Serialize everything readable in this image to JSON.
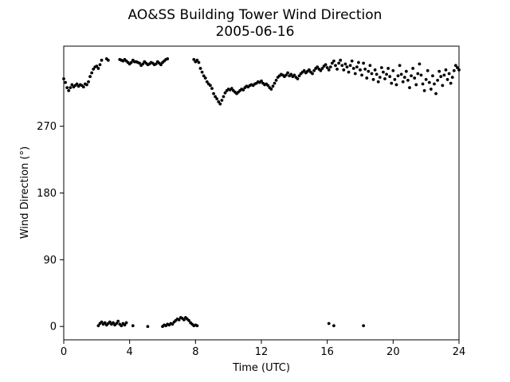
{
  "chart_data": {
    "type": "scatter",
    "title": "AO&SS Building Tower Wind Direction",
    "subtitle": "2005-06-16",
    "xlabel": "Time (UTC)",
    "ylabel": "Wind Direction (°)",
    "xlim": [
      0,
      24
    ],
    "ylim": [
      -18,
      378
    ],
    "xticks": [
      0,
      4,
      8,
      12,
      16,
      20,
      24
    ],
    "yticks": [
      0,
      90,
      180,
      270
    ],
    "grid": false,
    "legend": "none",
    "marker_color": "#000000",
    "series": [
      {
        "values": [
          [
            0.0,
            334
          ],
          [
            0.1,
            329
          ],
          [
            0.2,
            322
          ],
          [
            0.3,
            318
          ],
          [
            0.4,
            322
          ],
          [
            0.5,
            326
          ],
          [
            0.6,
            323
          ],
          [
            0.7,
            325
          ],
          [
            0.8,
            327
          ],
          [
            0.9,
            324
          ],
          [
            1.0,
            326
          ],
          [
            1.1,
            325
          ],
          [
            1.2,
            323
          ],
          [
            1.3,
            327
          ],
          [
            1.4,
            326
          ],
          [
            1.5,
            330
          ],
          [
            1.6,
            337
          ],
          [
            1.7,
            342
          ],
          [
            1.8,
            347
          ],
          [
            1.9,
            350
          ],
          [
            2.0,
            351
          ],
          [
            2.1,
            348
          ],
          [
            2.2,
            353
          ],
          [
            2.3,
            359
          ],
          [
            2.6,
            361
          ],
          [
            2.7,
            359
          ],
          [
            3.4,
            360
          ],
          [
            3.5,
            359
          ],
          [
            3.6,
            358
          ],
          [
            3.7,
            360
          ],
          [
            3.8,
            358
          ],
          [
            3.9,
            356
          ],
          [
            4.0,
            354
          ],
          [
            4.1,
            356
          ],
          [
            4.2,
            359
          ],
          [
            4.3,
            357
          ],
          [
            4.4,
            357
          ],
          [
            4.5,
            356
          ],
          [
            4.6,
            355
          ],
          [
            4.7,
            352
          ],
          [
            4.8,
            354
          ],
          [
            4.9,
            357
          ],
          [
            5.0,
            355
          ],
          [
            5.1,
            353
          ],
          [
            5.2,
            354
          ],
          [
            5.3,
            356
          ],
          [
            5.4,
            355
          ],
          [
            5.5,
            353
          ],
          [
            5.6,
            354
          ],
          [
            5.7,
            357
          ],
          [
            5.8,
            355
          ],
          [
            5.9,
            353
          ],
          [
            6.0,
            356
          ],
          [
            6.1,
            358
          ],
          [
            6.2,
            360
          ],
          [
            6.3,
            361
          ],
          [
            7.9,
            360
          ],
          [
            8.0,
            357
          ],
          [
            8.1,
            359
          ],
          [
            8.2,
            356
          ],
          [
            8.3,
            348
          ],
          [
            8.4,
            343
          ],
          [
            8.5,
            338
          ],
          [
            8.6,
            335
          ],
          [
            8.7,
            330
          ],
          [
            8.8,
            327
          ],
          [
            8.9,
            325
          ],
          [
            9.0,
            321
          ],
          [
            9.1,
            314
          ],
          [
            9.2,
            310
          ],
          [
            9.3,
            307
          ],
          [
            9.4,
            303
          ],
          [
            9.5,
            300
          ],
          [
            9.6,
            305
          ],
          [
            9.7,
            310
          ],
          [
            9.8,
            315
          ],
          [
            9.9,
            318
          ],
          [
            10.0,
            320
          ],
          [
            10.1,
            319
          ],
          [
            10.2,
            321
          ],
          [
            10.3,
            318
          ],
          [
            10.4,
            316
          ],
          [
            10.5,
            314
          ],
          [
            10.6,
            316
          ],
          [
            10.7,
            318
          ],
          [
            10.8,
            320
          ],
          [
            10.9,
            319
          ],
          [
            11.0,
            322
          ],
          [
            11.1,
            324
          ],
          [
            11.2,
            323
          ],
          [
            11.3,
            325
          ],
          [
            11.4,
            326
          ],
          [
            11.5,
            325
          ],
          [
            11.6,
            327
          ],
          [
            11.7,
            328
          ],
          [
            11.8,
            330
          ],
          [
            11.9,
            329
          ],
          [
            12.0,
            331
          ],
          [
            12.1,
            328
          ],
          [
            12.2,
            326
          ],
          [
            12.3,
            327
          ],
          [
            12.4,
            325
          ],
          [
            12.5,
            322
          ],
          [
            12.6,
            320
          ],
          [
            12.7,
            324
          ],
          [
            12.8,
            328
          ],
          [
            12.9,
            332
          ],
          [
            13.0,
            336
          ],
          [
            13.1,
            338
          ],
          [
            13.2,
            340
          ],
          [
            13.3,
            339
          ],
          [
            13.4,
            337
          ],
          [
            13.5,
            339
          ],
          [
            13.6,
            342
          ],
          [
            13.7,
            338
          ],
          [
            13.8,
            340
          ],
          [
            13.9,
            337
          ],
          [
            14.0,
            339
          ],
          [
            14.1,
            336
          ],
          [
            14.2,
            334
          ],
          [
            14.3,
            338
          ],
          [
            14.4,
            341
          ],
          [
            14.5,
            343
          ],
          [
            14.6,
            345
          ],
          [
            14.7,
            342
          ],
          [
            14.8,
            344
          ],
          [
            14.9,
            346
          ],
          [
            15.0,
            343
          ],
          [
            15.1,
            341
          ],
          [
            15.2,
            345
          ],
          [
            15.3,
            348
          ],
          [
            15.4,
            350
          ],
          [
            15.5,
            347
          ],
          [
            15.6,
            345
          ],
          [
            15.7,
            348
          ],
          [
            15.8,
            351
          ],
          [
            15.9,
            353
          ],
          [
            16.0,
            349
          ],
          [
            16.1,
            346
          ],
          [
            16.2,
            350
          ],
          [
            16.3,
            355
          ],
          [
            16.4,
            358
          ],
          [
            16.5,
            352
          ],
          [
            16.6,
            347
          ],
          [
            16.7,
            355
          ],
          [
            16.8,
            359
          ],
          [
            16.9,
            352
          ],
          [
            17.0,
            346
          ],
          [
            17.1,
            354
          ],
          [
            17.2,
            350
          ],
          [
            17.3,
            343
          ],
          [
            17.4,
            352
          ],
          [
            17.5,
            358
          ],
          [
            17.6,
            348
          ],
          [
            17.7,
            341
          ],
          [
            17.8,
            350
          ],
          [
            17.9,
            356
          ],
          [
            18.0,
            346
          ],
          [
            18.1,
            339
          ],
          [
            18.2,
            355
          ],
          [
            18.3,
            347
          ],
          [
            18.4,
            335
          ],
          [
            18.5,
            344
          ],
          [
            18.6,
            352
          ],
          [
            18.7,
            341
          ],
          [
            18.8,
            333
          ],
          [
            18.9,
            346
          ],
          [
            19.0,
            340
          ],
          [
            19.1,
            330
          ],
          [
            19.2,
            336
          ],
          [
            19.3,
            349
          ],
          [
            19.4,
            343
          ],
          [
            19.5,
            334
          ],
          [
            19.6,
            340
          ],
          [
            19.7,
            348
          ],
          [
            19.8,
            337
          ],
          [
            19.9,
            328
          ],
          [
            20.0,
            345
          ],
          [
            20.1,
            333
          ],
          [
            20.2,
            326
          ],
          [
            20.3,
            338
          ],
          [
            20.4,
            352
          ],
          [
            20.5,
            340
          ],
          [
            20.6,
            330
          ],
          [
            20.7,
            336
          ],
          [
            20.8,
            344
          ],
          [
            20.9,
            332
          ],
          [
            21.0,
            322
          ],
          [
            21.1,
            338
          ],
          [
            21.2,
            348
          ],
          [
            21.3,
            335
          ],
          [
            21.4,
            326
          ],
          [
            21.5,
            341
          ],
          [
            21.6,
            354
          ],
          [
            21.7,
            339
          ],
          [
            21.8,
            327
          ],
          [
            21.9,
            318
          ],
          [
            22.0,
            333
          ],
          [
            22.1,
            345
          ],
          [
            22.2,
            329
          ],
          [
            22.3,
            320
          ],
          [
            22.4,
            338
          ],
          [
            22.5,
            327
          ],
          [
            22.6,
            314
          ],
          [
            22.7,
            332
          ],
          [
            22.8,
            344
          ],
          [
            22.9,
            337
          ],
          [
            23.0,
            325
          ],
          [
            23.1,
            339
          ],
          [
            23.2,
            346
          ],
          [
            23.3,
            333
          ],
          [
            23.4,
            341
          ],
          [
            23.5,
            328
          ],
          [
            23.6,
            336
          ],
          [
            23.7,
            345
          ],
          [
            23.8,
            352
          ],
          [
            23.9,
            349
          ],
          [
            24.0,
            346
          ],
          [
            2.1,
            1
          ],
          [
            2.2,
            4
          ],
          [
            2.3,
            6
          ],
          [
            2.4,
            3
          ],
          [
            2.5,
            5
          ],
          [
            2.6,
            2
          ],
          [
            2.7,
            4
          ],
          [
            2.8,
            6
          ],
          [
            2.9,
            3
          ],
          [
            3.0,
            5
          ],
          [
            3.1,
            2
          ],
          [
            3.2,
            4
          ],
          [
            3.3,
            7
          ],
          [
            3.4,
            3
          ],
          [
            3.5,
            1
          ],
          [
            3.6,
            4
          ],
          [
            3.7,
            2
          ],
          [
            3.8,
            5
          ],
          [
            4.2,
            1
          ],
          [
            5.1,
            0
          ],
          [
            6.0,
            0
          ],
          [
            6.1,
            2
          ],
          [
            6.2,
            1
          ],
          [
            6.3,
            3
          ],
          [
            6.4,
            2
          ],
          [
            6.5,
            4
          ],
          [
            6.6,
            3
          ],
          [
            6.7,
            6
          ],
          [
            6.8,
            8
          ],
          [
            6.9,
            10
          ],
          [
            7.0,
            9
          ],
          [
            7.1,
            12
          ],
          [
            7.2,
            11
          ],
          [
            7.3,
            9
          ],
          [
            7.4,
            12
          ],
          [
            7.5,
            10
          ],
          [
            7.6,
            8
          ],
          [
            7.7,
            5
          ],
          [
            7.8,
            3
          ],
          [
            7.9,
            1
          ],
          [
            8.0,
            2
          ],
          [
            8.1,
            1
          ],
          [
            16.1,
            4
          ],
          [
            16.4,
            1
          ],
          [
            18.2,
            1
          ]
        ]
      }
    ]
  }
}
